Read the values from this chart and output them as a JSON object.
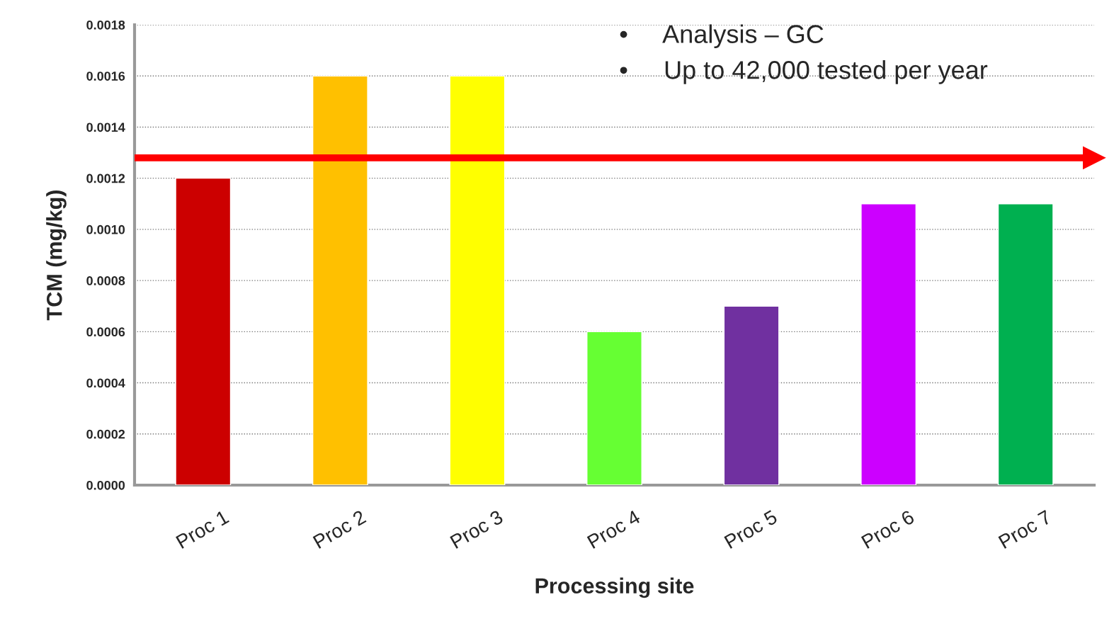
{
  "chart_data": {
    "type": "bar",
    "xlabel": "Processing site",
    "ylabel": "TCM (mg/kg)",
    "categories": [
      "Proc 1",
      "Proc 2",
      "Proc 3",
      "Proc 4",
      "Proc 5",
      "Proc 6",
      "Proc 7"
    ],
    "values": [
      0.0012,
      0.0016,
      0.0016,
      0.0006,
      0.0007,
      0.0011,
      0.0011
    ],
    "colors": [
      "#cc0000",
      "#ffc000",
      "#ffff00",
      "#66ff33",
      "#7030a0",
      "#cc00ff",
      "#00b050"
    ],
    "ylim": [
      0,
      0.0018
    ],
    "yticks": [
      {
        "value": 0,
        "label": "0.0000"
      },
      {
        "value": 0.0002,
        "label": "0.0002"
      },
      {
        "value": 0.0004,
        "label": "0.0004"
      },
      {
        "value": 0.0006,
        "label": "0.0006"
      },
      {
        "value": 0.0008,
        "label": "0.0008"
      },
      {
        "value": 0.001,
        "label": "0.0010"
      },
      {
        "value": 0.0012,
        "label": "0.0012"
      },
      {
        "value": 0.0014,
        "label": "0.0014"
      },
      {
        "value": 0.0016,
        "label": "0.0016"
      },
      {
        "value": 0.0018,
        "label": "0.0018"
      }
    ],
    "grid": "y",
    "ref_lines": [
      {
        "axis": "y",
        "value": 0.00128,
        "color": "#ff0000"
      }
    ],
    "annotations": [
      "•     Analysis – GC",
      "•     Up to 42,000 tested per year"
    ]
  }
}
